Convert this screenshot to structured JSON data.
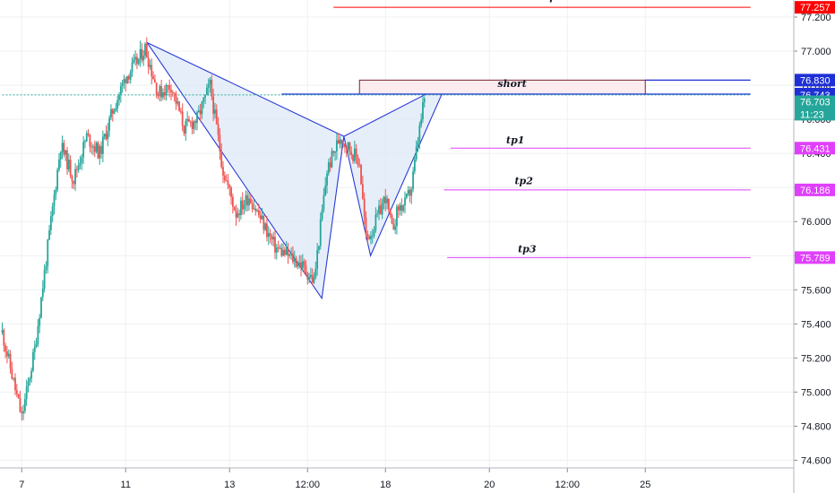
{
  "colors": {
    "up": "#26a69a",
    "down": "#ef5350",
    "pattern": "#2a3ad6",
    "pattern_fill": "#dde9f7",
    "stop": "#ff0000",
    "tp": "#e040fb",
    "entry": "#1e2fd6",
    "price_line": "#26a69a",
    "grid": "#eef0f3",
    "axis_text": "#131722"
  },
  "chart_data": {
    "type": "candlestick",
    "ylim": [
      74.55,
      77.3
    ],
    "y_ticks": [
      "77.200",
      "77.000",
      "76.800",
      "76.600",
      "76.400",
      "76.200",
      "76.000",
      "75.800",
      "75.600",
      "75.400",
      "75.200",
      "75.000",
      "74.800",
      "74.600"
    ],
    "x_ticks": [
      {
        "label": "7",
        "bar": 3
      },
      {
        "label": "11",
        "bar": 19
      },
      {
        "label": "13",
        "bar": 35
      },
      {
        "label": "12:00",
        "bar": 47
      },
      {
        "label": "18",
        "bar": 59
      },
      {
        "label": "20",
        "bar": 75
      },
      {
        "label": "12:00",
        "bar": 87
      },
      {
        "label": "25",
        "bar": 99
      }
    ],
    "bars_total": 120,
    "candle_anchors": [
      [
        0,
        75.35
      ],
      [
        3,
        74.85
      ],
      [
        5,
        75.25
      ],
      [
        7,
        75.85
      ],
      [
        9,
        76.45
      ],
      [
        11,
        76.25
      ],
      [
        13,
        76.5
      ],
      [
        15,
        76.4
      ],
      [
        17,
        76.65
      ],
      [
        19,
        76.85
      ],
      [
        21,
        76.95
      ],
      [
        22,
        77.02
      ],
      [
        24,
        76.75
      ],
      [
        26,
        76.8
      ],
      [
        28,
        76.55
      ],
      [
        30,
        76.6
      ],
      [
        32,
        76.8
      ],
      [
        34,
        76.3
      ],
      [
        36,
        76.05
      ],
      [
        38,
        76.15
      ],
      [
        40,
        76.0
      ],
      [
        42,
        75.85
      ],
      [
        44,
        75.8
      ],
      [
        46,
        75.75
      ],
      [
        48,
        75.65
      ],
      [
        50,
        76.3
      ],
      [
        52,
        76.5
      ],
      [
        53,
        76.45
      ],
      [
        55,
        76.35
      ],
      [
        56,
        75.9
      ],
      [
        57,
        75.95
      ],
      [
        58,
        76.05
      ],
      [
        59,
        76.15
      ],
      [
        60,
        75.95
      ],
      [
        61,
        76.08
      ],
      [
        62,
        76.1
      ],
      [
        63,
        76.2
      ],
      [
        64,
        76.48
      ],
      [
        65,
        76.72
      ]
    ],
    "pattern_points": [
      {
        "bar": 22.3,
        "price": 77.05
      },
      {
        "bar": 49.2,
        "price": 75.55
      },
      {
        "bar": 52.6,
        "price": 76.5
      },
      {
        "bar": 56.7,
        "price": 75.8
      },
      {
        "bar": 68.4,
        "price": 76.81
      }
    ],
    "levels": [
      {
        "name": "stop",
        "value": 77.257,
        "label": "77.257",
        "bar_start": 51,
        "bar_end": 115.2,
        "kind": "stop"
      },
      {
        "name": "entry-high",
        "value": 76.83,
        "label": "76.830",
        "bar_start": 99,
        "bar_end": 115.2,
        "kind": "entry"
      },
      {
        "name": "entry",
        "value": 76.748,
        "label": "76.748",
        "bar_start": 43,
        "bar_end": 115.2,
        "kind": "entry"
      },
      {
        "name": "current",
        "value": 76.743,
        "label": "76.743",
        "bar_start": 0,
        "bar_end": 115.2,
        "kind": "current"
      },
      {
        "name": "close",
        "value": 76.703,
        "label": "76.703",
        "kind": "close"
      },
      {
        "name": "countdown",
        "value": 76.63,
        "label": "11:23",
        "kind": "countdown"
      },
      {
        "name": "tp1",
        "value": 76.431,
        "label": "76.431",
        "bar_start": 69,
        "bar_end": 115.2,
        "kind": "tp"
      },
      {
        "name": "tp2",
        "value": 76.186,
        "label": "76.186",
        "bar_start": 68,
        "bar_end": 115.2,
        "kind": "tp"
      },
      {
        "name": "tp3",
        "value": 75.789,
        "label": "75.789",
        "bar_start": 68.5,
        "bar_end": 115.2,
        "kind": "tp"
      }
    ],
    "annotations": [
      {
        "text": "stop",
        "bar": 83.5,
        "price": 77.3
      },
      {
        "text": "short",
        "bar": 78.5,
        "price": 76.79
      },
      {
        "text": "tp1",
        "bar": 79,
        "price": 76.46
      },
      {
        "text": "tp2",
        "bar": 80.3,
        "price": 76.22
      },
      {
        "text": "tp3",
        "bar": 80.8,
        "price": 75.82
      }
    ],
    "short_box": {
      "bar_start": 55,
      "bar_end": 99,
      "top": 76.83,
      "bottom": 76.748
    }
  }
}
